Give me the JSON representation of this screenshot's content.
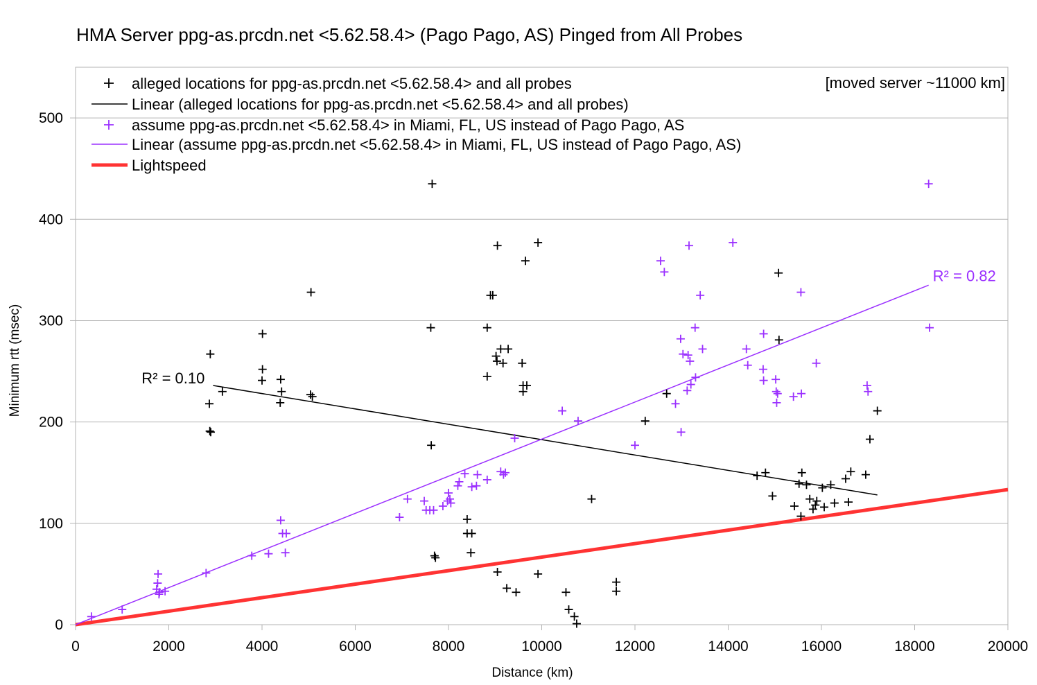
{
  "chart_data": {
    "type": "scatter",
    "title": "HMA Server ppg-as.prcdn.net <5.62.58.4> (Pago Pago, AS) Pinged from All Probes",
    "xlabel": "Distance (km)",
    "ylabel": "Minimum rtt (msec)",
    "xlim": [
      0,
      20000
    ],
    "ylim": [
      0,
      550
    ],
    "x_ticks": [
      "0",
      "2000",
      "4000",
      "6000",
      "8000",
      "10000",
      "12000",
      "14000",
      "16000",
      "18000",
      "20000"
    ],
    "y_ticks": [
      "0",
      "100",
      "200",
      "300",
      "400",
      "500"
    ],
    "grid": "horizontal",
    "legend_position": "top-left inside",
    "note": "[moved server ~11000 km]",
    "colors": {
      "alleged": "#000000",
      "miami": "#9b30ff",
      "lightspeed": "#ff3333"
    },
    "series": [
      {
        "name": "alleged locations for ppg-as.prcdn.net <5.62.58.4> and all probes",
        "marker": "plus",
        "color": "#000000",
        "points": [
          [
            2890,
            267
          ],
          [
            2870,
            218
          ],
          [
            2880,
            191
          ],
          [
            2900,
            190
          ],
          [
            3150,
            230
          ],
          [
            4010,
            287
          ],
          [
            4010,
            252
          ],
          [
            4000,
            241
          ],
          [
            4400,
            242
          ],
          [
            4420,
            230
          ],
          [
            4390,
            219
          ],
          [
            5050,
            328
          ],
          [
            5040,
            227
          ],
          [
            5080,
            225
          ],
          [
            7650,
            435
          ],
          [
            7620,
            293
          ],
          [
            7630,
            177
          ],
          [
            7700,
            68
          ],
          [
            7720,
            66
          ],
          [
            8400,
            104
          ],
          [
            8400,
            90
          ],
          [
            8500,
            90
          ],
          [
            8480,
            71
          ],
          [
            8830,
            245
          ],
          [
            8830,
            293
          ],
          [
            8900,
            325
          ],
          [
            8950,
            325
          ],
          [
            9050,
            374
          ],
          [
            9020,
            265
          ],
          [
            9040,
            260
          ],
          [
            9120,
            272
          ],
          [
            9170,
            258
          ],
          [
            9280,
            272
          ],
          [
            9580,
            258
          ],
          [
            9600,
            236
          ],
          [
            9600,
            230
          ],
          [
            9680,
            236
          ],
          [
            9650,
            359
          ],
          [
            9920,
            377
          ],
          [
            9050,
            52
          ],
          [
            9250,
            36
          ],
          [
            9450,
            32
          ],
          [
            9920,
            50
          ],
          [
            10520,
            32
          ],
          [
            10580,
            15
          ],
          [
            10700,
            8
          ],
          [
            10750,
            1
          ],
          [
            11070,
            124
          ],
          [
            11600,
            42
          ],
          [
            11600,
            33
          ],
          [
            12220,
            201
          ],
          [
            12680,
            228
          ],
          [
            14620,
            147
          ],
          [
            14800,
            150
          ],
          [
            14950,
            127
          ],
          [
            15080,
            347
          ],
          [
            15090,
            281
          ],
          [
            15420,
            117
          ],
          [
            15520,
            139
          ],
          [
            15560,
            107
          ],
          [
            15580,
            150
          ],
          [
            15680,
            138
          ],
          [
            15750,
            124
          ],
          [
            15820,
            114
          ],
          [
            15870,
            118
          ],
          [
            15900,
            122
          ],
          [
            16020,
            135
          ],
          [
            16060,
            116
          ],
          [
            16200,
            138
          ],
          [
            16280,
            120
          ],
          [
            16520,
            144
          ],
          [
            16580,
            121
          ],
          [
            16630,
            151
          ],
          [
            16950,
            148
          ],
          [
            17040,
            183
          ],
          [
            17200,
            211
          ]
        ]
      },
      {
        "name": "Linear (alleged locations for ppg-as.prcdn.net <5.62.58.4> and all probes)",
        "line": true,
        "color": "#000000",
        "x": [
          2950,
          17200
        ],
        "y": [
          236,
          128
        ],
        "r2_label": "R² = 0.10"
      },
      {
        "name": "assume ppg-as.prcdn.net <5.62.58.4> in Miami, FL, US instead of Pago Pago, AS",
        "marker": "plus",
        "color": "#9b30ff",
        "points": [
          [
            340,
            8
          ],
          [
            1000,
            15
          ],
          [
            1770,
            50
          ],
          [
            1760,
            41
          ],
          [
            1740,
            35
          ],
          [
            1800,
            32
          ],
          [
            1790,
            30
          ],
          [
            1920,
            33
          ],
          [
            2800,
            51
          ],
          [
            3780,
            68
          ],
          [
            4140,
            70
          ],
          [
            4400,
            103
          ],
          [
            4440,
            90
          ],
          [
            4520,
            90
          ],
          [
            4500,
            71
          ],
          [
            6950,
            106
          ],
          [
            7120,
            124
          ],
          [
            7480,
            122
          ],
          [
            7520,
            113
          ],
          [
            7600,
            113
          ],
          [
            7680,
            113
          ],
          [
            7880,
            117
          ],
          [
            7980,
            122
          ],
          [
            8000,
            130
          ],
          [
            8030,
            124
          ],
          [
            8050,
            120
          ],
          [
            8200,
            137
          ],
          [
            8230,
            141
          ],
          [
            8350,
            149
          ],
          [
            8500,
            136
          ],
          [
            8600,
            137
          ],
          [
            8620,
            148
          ],
          [
            8830,
            143
          ],
          [
            9120,
            151
          ],
          [
            9180,
            148
          ],
          [
            9220,
            150
          ],
          [
            9420,
            184
          ],
          [
            10440,
            211
          ],
          [
            10780,
            201
          ],
          [
            12000,
            177
          ],
          [
            12550,
            359
          ],
          [
            12630,
            348
          ],
          [
            12870,
            218
          ],
          [
            12980,
            282
          ],
          [
            12990,
            190
          ],
          [
            13030,
            267
          ],
          [
            13160,
            374
          ],
          [
            13140,
            266
          ],
          [
            13180,
            260
          ],
          [
            13120,
            231
          ],
          [
            13200,
            237
          ],
          [
            13300,
            244
          ],
          [
            13290,
            293
          ],
          [
            13400,
            325
          ],
          [
            13450,
            272
          ],
          [
            14100,
            377
          ],
          [
            14390,
            272
          ],
          [
            14420,
            256
          ],
          [
            14760,
            287
          ],
          [
            14750,
            252
          ],
          [
            14760,
            241
          ],
          [
            15020,
            242
          ],
          [
            15030,
            230
          ],
          [
            15040,
            219
          ],
          [
            15060,
            228
          ],
          [
            15400,
            225
          ],
          [
            15570,
            228
          ],
          [
            15560,
            328
          ],
          [
            15890,
            258
          ],
          [
            16980,
            236
          ],
          [
            17000,
            230
          ],
          [
            18300,
            435
          ],
          [
            18320,
            293
          ]
        ]
      },
      {
        "name": "Linear (assume ppg-as.prcdn.net <5.62.58.4> in Miami, FL, US instead of Pago Pago, AS)",
        "line": true,
        "color": "#9b30ff",
        "x": [
          0,
          18300
        ],
        "y": [
          0,
          335
        ],
        "r2_label": "R² = 0.82"
      },
      {
        "name": "Lightspeed",
        "line": true,
        "color": "#ff3333",
        "x": [
          0,
          20000
        ],
        "y": [
          0,
          133.3
        ]
      }
    ]
  }
}
